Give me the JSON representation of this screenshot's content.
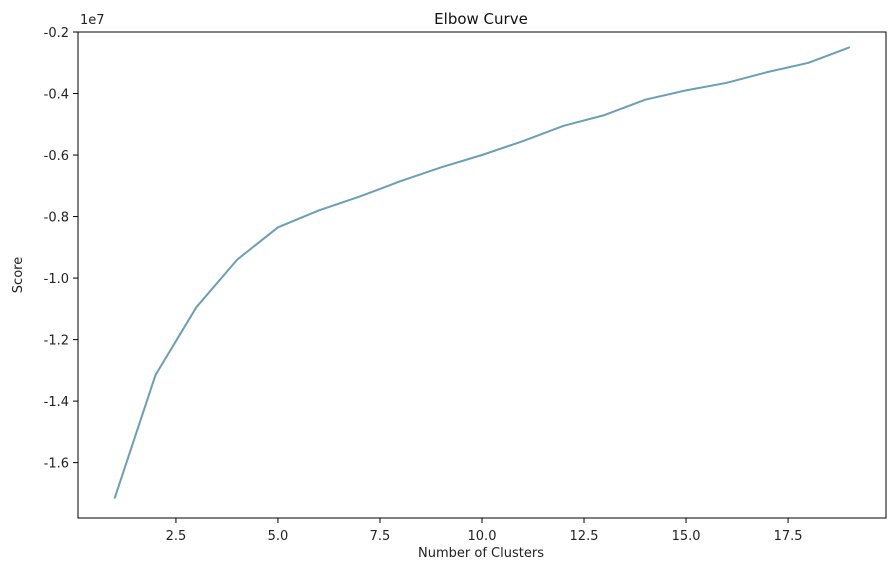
{
  "chart_data": {
    "type": "line",
    "title": "Elbow Curve",
    "xlabel": "Number of Clusters",
    "ylabel": "Score",
    "y_offset_label": "1e7",
    "xlim": [
      0.1,
      19.9
    ],
    "ylim": [
      -1.78,
      -0.2
    ],
    "x_ticks": [
      2.5,
      5.0,
      7.5,
      10.0,
      12.5,
      15.0,
      17.5
    ],
    "x_tick_labels": [
      "2.5",
      "5.0",
      "7.5",
      "10.0",
      "12.5",
      "15.0",
      "17.5"
    ],
    "y_ticks": [
      -0.2,
      -0.4,
      -0.6,
      -0.8,
      -1.0,
      -1.2,
      -1.4,
      -1.6
    ],
    "y_tick_labels": [
      "-0.2",
      "-0.4",
      "-0.6",
      "-0.8",
      "-1.0",
      "-1.2",
      "-1.4",
      "-1.6"
    ],
    "grid": false,
    "series": [
      {
        "color": "#6b9fb5",
        "x": [
          1,
          2,
          3,
          4,
          5,
          6,
          7,
          8,
          9,
          10,
          11,
          12,
          13,
          14,
          15,
          16,
          17,
          18,
          19
        ],
        "y": [
          -1.715,
          -1.315,
          -1.095,
          -0.94,
          -0.835,
          -0.78,
          -0.735,
          -0.685,
          -0.64,
          -0.6,
          -0.555,
          -0.505,
          -0.47,
          -0.42,
          -0.39,
          -0.365,
          -0.33,
          -0.3,
          -0.25
        ]
      }
    ]
  }
}
